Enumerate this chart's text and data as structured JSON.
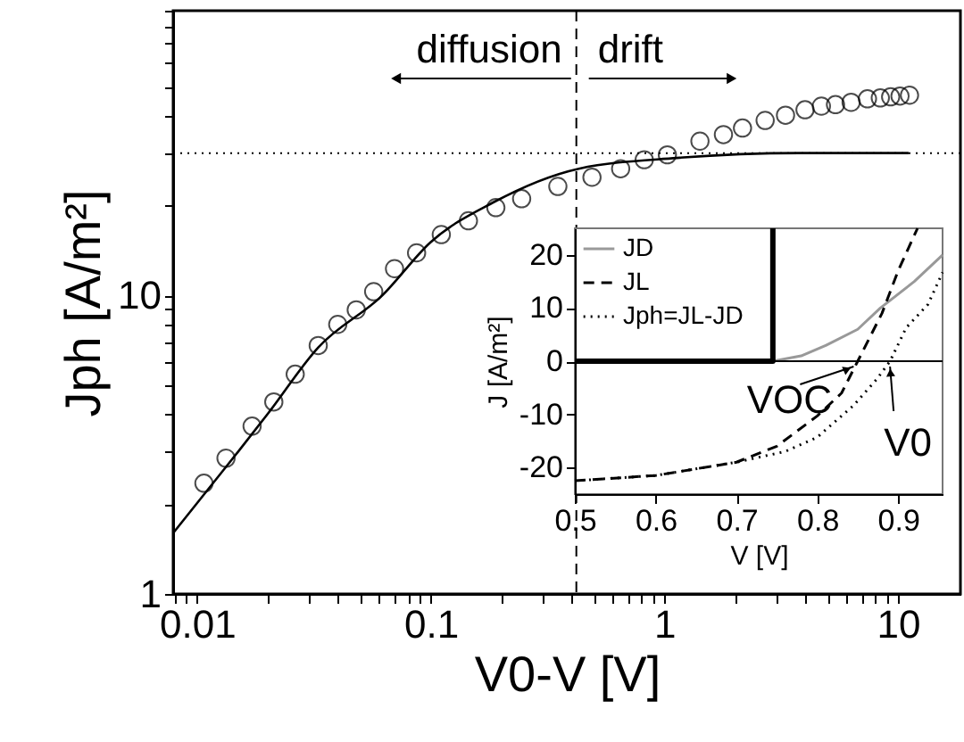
{
  "chart_data": [
    {
      "type": "scatter",
      "xlabel": "V0-V [V]",
      "ylabel": "Jph [A/m²]",
      "log": "xy",
      "grid": false,
      "xlim": [
        0.0079,
        18.5
      ],
      "ylim": [
        1,
        90
      ],
      "xticks": [
        {
          "value": 0.008,
          "label": null
        },
        {
          "value": 0.009,
          "label": null
        },
        0.01,
        {
          "value": 0.02,
          "label": null
        },
        {
          "value": 0.03,
          "label": null
        },
        {
          "value": 0.04,
          "label": null
        },
        {
          "value": 0.05,
          "label": null
        },
        {
          "value": 0.06,
          "label": null
        },
        {
          "value": 0.07,
          "label": null
        },
        {
          "value": 0.08,
          "label": null
        },
        {
          "value": 0.09,
          "label": null
        },
        0.1,
        {
          "value": 0.2,
          "label": null
        },
        {
          "value": 0.3,
          "label": null
        },
        {
          "value": 0.4,
          "label": null
        },
        {
          "value": 0.5,
          "label": null
        },
        {
          "value": 0.6,
          "label": null
        },
        {
          "value": 0.7,
          "label": null
        },
        {
          "value": 0.8,
          "label": null
        },
        {
          "value": 0.9,
          "label": null
        },
        1,
        {
          "value": 2,
          "label": null
        },
        {
          "value": 3,
          "label": null
        },
        {
          "value": 4,
          "label": null
        },
        {
          "value": 5,
          "label": null
        },
        {
          "value": 6,
          "label": null
        },
        {
          "value": 7,
          "label": null
        },
        {
          "value": 8,
          "label": null
        },
        {
          "value": 9,
          "label": null
        },
        10
      ],
      "yticks": [
        1,
        {
          "value": 2,
          "label": null
        },
        {
          "value": 3,
          "label": null
        },
        {
          "value": 4,
          "label": null
        },
        {
          "value": 5,
          "label": null
        },
        {
          "value": 6,
          "label": null
        },
        {
          "value": 7,
          "label": null
        },
        {
          "value": 8,
          "label": null
        },
        {
          "value": 9,
          "label": null
        },
        10,
        {
          "value": 20,
          "label": null
        },
        {
          "value": 30,
          "label": null
        },
        {
          "value": 40,
          "label": null
        },
        {
          "value": 50,
          "label": null
        },
        {
          "value": 60,
          "label": null
        },
        {
          "value": 70,
          "label": null
        },
        {
          "value": 80,
          "label": null
        },
        {
          "value": 90,
          "label": null
        }
      ],
      "series": [
        {
          "type": "scatter",
          "marker": "circle",
          "color": "#000000",
          "x": [
            0.0107,
            0.0133,
            0.0172,
            0.0213,
            0.0263,
            0.033,
            0.04,
            0.048,
            0.057,
            0.07,
            0.087,
            0.111,
            0.145,
            0.19,
            0.245,
            0.35,
            0.49,
            0.65,
            0.82,
            1.03,
            1.42,
            1.79,
            2.16,
            2.7,
            3.3,
            4.0,
            4.7,
            5.4,
            6.3,
            7.4,
            8.4,
            9.3,
            10.2,
            11.2
          ],
          "values": [
            2.35,
            2.85,
            3.65,
            4.4,
            5.45,
            6.8,
            8.0,
            8.95,
            10.3,
            12.3,
            13.9,
            16.0,
            17.8,
            19.7,
            21.1,
            23.2,
            24.9,
            26.6,
            28.5,
            29.6,
            32.9,
            34.6,
            36.4,
            38.6,
            40.2,
            41.9,
            43.1,
            43.6,
            44.4,
            45.6,
            45.9,
            46.3,
            46.6,
            46.9
          ]
        },
        {
          "type": "line",
          "color": "#000000",
          "line_style": "solid",
          "x": [
            0.0079,
            0.015,
            0.02,
            0.033,
            0.062,
            0.1,
            0.185,
            0.43,
            1.13,
            3.8,
            11.1
          ],
          "values": [
            1.6,
            3.0,
            4.0,
            6.7,
            10,
            15.1,
            20.5,
            26.6,
            28.9,
            30,
            30
          ]
        }
      ],
      "ref_lines": [
        {
          "axis": "y",
          "value": 30,
          "line_style": "dotted",
          "color": "#000000"
        },
        {
          "axis": "x",
          "value": 0.42,
          "line_style": "dashed",
          "color": "#000000"
        }
      ],
      "annotations": [
        "diffusion",
        "drift"
      ]
    },
    {
      "type": "line",
      "xlabel": "V [V]",
      "ylabel": "J [A/m²]",
      "grid": false,
      "legend": "top left",
      "xlim": [
        0.5,
        0.955
      ],
      "ylim": [
        -25,
        25
      ],
      "xticks": [
        0.5,
        0.6,
        0.7,
        0.8,
        0.9
      ],
      "yticks": [
        -20,
        -10,
        0,
        10,
        20
      ],
      "series": [
        {
          "name": "JD",
          "color": "#999999",
          "line_style": "solid",
          "x": [
            0.745,
            0.78,
            0.811,
            0.85,
            0.878,
            0.92,
            0.955
          ],
          "values": [
            0,
            1,
            3,
            6,
            10,
            15,
            20
          ]
        },
        {
          "name": "JL",
          "color": "#000000",
          "line_style": "dashed",
          "x": [
            0.5,
            0.6,
            0.7,
            0.75,
            0.8,
            0.83,
            0.85,
            0.88,
            0.9,
            0.924
          ],
          "values": [
            -22.5,
            -21.5,
            -19,
            -16,
            -10.3,
            -6,
            0,
            9,
            17,
            25
          ]
        },
        {
          "name": "Jph=JL-JD",
          "color": "#000000",
          "line_style": "dotted",
          "x": [
            0.5,
            0.6,
            0.7,
            0.76,
            0.8,
            0.845,
            0.874,
            0.89,
            0.91,
            0.937,
            0.955
          ],
          "values": [
            -22.5,
            -21.5,
            -19,
            -17,
            -14.3,
            -8.3,
            -3.3,
            0,
            6.3,
            10.7,
            16.7
          ]
        },
        {
          "color": "#000000",
          "line_style": "solid",
          "x": [
            0.5,
            0.745,
            0.745
          ],
          "values": [
            0,
            0,
            25
          ]
        }
      ],
      "ref_lines": [
        {
          "axis": "y",
          "value": 0,
          "line_style": "solid",
          "color": "#000000"
        }
      ],
      "annotations": [
        {
          "text": "VOC",
          "x": 0.845,
          "y": 0
        },
        {
          "text": "V0",
          "x": 0.89,
          "y": 0
        }
      ]
    }
  ]
}
